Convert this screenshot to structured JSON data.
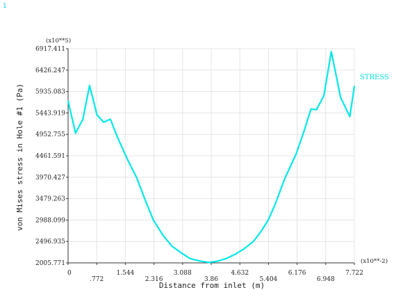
{
  "corner_mark": "1",
  "chart_data": {
    "type": "line",
    "xlabel": "Distance from inlet (m)",
    "ylabel": "von Mises stress in Hole #1 (Pa)",
    "x_multiplier": "(x10**-2)",
    "y_multiplier": "(x10**5)",
    "xlim": [
      0,
      7.722
    ],
    "ylim": [
      2005.771,
      6917.411
    ],
    "x_ticks": [
      "0",
      ".772",
      "1.544",
      "2.316",
      "3.088",
      "3.86",
      "4.632",
      "5.404",
      "6.176",
      "6.948",
      "7.722"
    ],
    "y_ticks": [
      "2005.771",
      "2496.935",
      "2988.099",
      "3479.263",
      "3970.427",
      "4461.591",
      "4952.755",
      "5443.919",
      "5935.083",
      "6426.247",
      "6917.411"
    ],
    "grid": true,
    "legend_position": "right",
    "series": [
      {
        "name": "STRESS",
        "color": "#00e8e8",
        "x": [
          0,
          0.2,
          0.4,
          0.58,
          0.78,
          0.96,
          1.14,
          1.35,
          1.6,
          1.85,
          2.07,
          2.3,
          2.55,
          2.8,
          3.06,
          3.3,
          3.55,
          3.8,
          4.0,
          4.25,
          4.5,
          4.75,
          5.0,
          5.2,
          5.4,
          5.6,
          5.85,
          6.15,
          6.35,
          6.55,
          6.7,
          6.9,
          7.1,
          7.35,
          7.6,
          7.722
        ],
        "y": [
          5720,
          4980,
          5300,
          6075,
          5400,
          5230,
          5300,
          4850,
          4380,
          3960,
          3470,
          2990,
          2650,
          2390,
          2230,
          2100,
          2050,
          2015,
          2040,
          2100,
          2200,
          2330,
          2500,
          2720,
          2990,
          3380,
          3950,
          4500,
          4990,
          5530,
          5520,
          5840,
          6850,
          5800,
          5360,
          6060
        ]
      }
    ]
  }
}
